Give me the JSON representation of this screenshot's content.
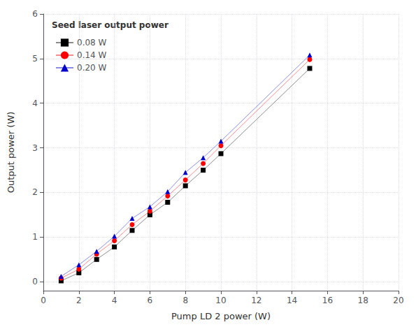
{
  "chart_data": {
    "type": "line",
    "xlabel": "Pump LD 2 power (W)",
    "ylabel": "Output power (W)",
    "legend_title": "Seed laser output power",
    "xlim": [
      0,
      20
    ],
    "ylim": [
      -0.2,
      6
    ],
    "xticks": [
      0,
      2,
      4,
      6,
      8,
      10,
      12,
      14,
      16,
      18,
      20
    ],
    "yticks": [
      0,
      1,
      2,
      3,
      4,
      5,
      6
    ],
    "grid": true,
    "legend": "upper left",
    "series": [
      {
        "name": "0.08 W",
        "color": "#000000",
        "marker": "square",
        "x": [
          1,
          2,
          3,
          4,
          5,
          6,
          7,
          8,
          9,
          10,
          15
        ],
        "values": [
          0.02,
          0.2,
          0.5,
          0.78,
          1.15,
          1.5,
          1.78,
          2.15,
          2.5,
          2.87,
          4.78
        ]
      },
      {
        "name": "0.14 W",
        "color": "#ff0000",
        "marker": "circle",
        "x": [
          1,
          2,
          3,
          4,
          5,
          6,
          7,
          8,
          9,
          10,
          15
        ],
        "values": [
          0.08,
          0.28,
          0.62,
          0.92,
          1.28,
          1.58,
          1.92,
          2.28,
          2.65,
          3.05,
          4.98
        ]
      },
      {
        "name": "0.20 W",
        "color": "#0000cc",
        "marker": "triangle",
        "x": [
          1,
          2,
          3,
          4,
          5,
          6,
          7,
          8,
          9,
          10,
          15
        ],
        "values": [
          0.12,
          0.38,
          0.68,
          1.02,
          1.42,
          1.68,
          2.02,
          2.45,
          2.78,
          3.15,
          5.08
        ]
      }
    ]
  }
}
